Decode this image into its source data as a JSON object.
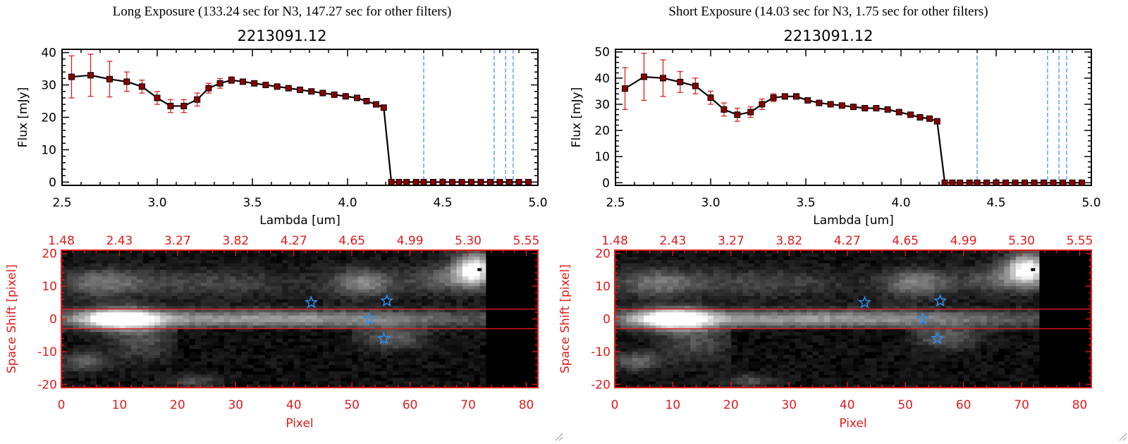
{
  "panels": [
    {
      "exposure_title": "Long Exposure (133.24 sec for N3, 147.27 sec for other filters)",
      "object_id": "2213091.12"
    },
    {
      "exposure_title": "Short Exposure (14.03 sec for N3, 1.75 sec for other filters)",
      "object_id": "2213091.12"
    }
  ],
  "colors": {
    "series": "#000000",
    "error_bars": "#e02020",
    "markers": "#8b0000",
    "filter_lines": "#3a8ee6",
    "image_axes": "#e01b1b",
    "stars": "#2f8ff0"
  },
  "chart_data": [
    {
      "type": "line",
      "title": "2213091.12",
      "xlabel": "Lambda [um]",
      "ylabel": "Flux [mJy]",
      "xlim": [
        2.5,
        5.0
      ],
      "ylim": [
        -1,
        41
      ],
      "xticks": [
        "2.5",
        "3.0",
        "3.5",
        "4.0",
        "4.5",
        "5.0"
      ],
      "yticks": [
        "0",
        "10",
        "20",
        "30",
        "40"
      ],
      "x": [
        2.55,
        2.65,
        2.75,
        2.84,
        2.92,
        3.0,
        3.07,
        3.14,
        3.21,
        3.27,
        3.33,
        3.39,
        3.45,
        3.51,
        3.57,
        3.63,
        3.69,
        3.75,
        3.81,
        3.87,
        3.93,
        3.99,
        4.05,
        4.1,
        4.15,
        4.19,
        4.23,
        4.27,
        4.31,
        4.36,
        4.4,
        4.45,
        4.5,
        4.55,
        4.6,
        4.65,
        4.7,
        4.75,
        4.8,
        4.85,
        4.9,
        4.95
      ],
      "y": [
        32.5,
        33.0,
        31.8,
        31.0,
        29.5,
        26.0,
        23.5,
        23.5,
        25.5,
        29.0,
        30.5,
        31.5,
        31.0,
        30.5,
        30.0,
        29.5,
        29.0,
        28.5,
        28.0,
        27.5,
        27.0,
        26.5,
        26.0,
        25.0,
        24.0,
        23.0,
        0,
        0,
        0,
        0,
        0,
        0,
        0,
        0,
        0,
        0,
        0,
        0,
        0,
        0,
        0,
        0
      ],
      "yerr": [
        6.5,
        6.5,
        5.5,
        3.0,
        2.0,
        2.0,
        2.0,
        2.0,
        2.0,
        1.5,
        1.5,
        1.0,
        0.5,
        0.5,
        0.5,
        0.5,
        0.5,
        0.5,
        0.5,
        0.5,
        0.5,
        0.5,
        0.5,
        0.5,
        0.5,
        0.5,
        0.3,
        0.3,
        0.3,
        0.3,
        0.3,
        0.3,
        0.3,
        0.3,
        0.3,
        0.3,
        0.3,
        0.3,
        0.3,
        0.3,
        0.3,
        0.3
      ],
      "filter_lines": [
        4.4,
        4.77,
        4.83,
        4.87
      ]
    },
    {
      "type": "line",
      "title": "2213091.12",
      "xlabel": "Lambda [um]",
      "ylabel": "Flux [mJy]",
      "xlim": [
        2.5,
        5.0
      ],
      "ylim": [
        -1,
        51
      ],
      "xticks": [
        "2.5",
        "3.0",
        "3.5",
        "4.0",
        "4.5",
        "5.0"
      ],
      "yticks": [
        "0",
        "10",
        "20",
        "30",
        "40",
        "50"
      ],
      "x": [
        2.55,
        2.65,
        2.75,
        2.84,
        2.92,
        3.0,
        3.07,
        3.14,
        3.21,
        3.27,
        3.33,
        3.39,
        3.45,
        3.51,
        3.57,
        3.63,
        3.69,
        3.75,
        3.81,
        3.87,
        3.93,
        3.99,
        4.05,
        4.1,
        4.15,
        4.19,
        4.23,
        4.27,
        4.31,
        4.36,
        4.4,
        4.45,
        4.5,
        4.55,
        4.6,
        4.65,
        4.7,
        4.75,
        4.8,
        4.85,
        4.9,
        4.95
      ],
      "y": [
        36.0,
        40.5,
        40.0,
        38.5,
        37.0,
        32.5,
        28.0,
        26.0,
        27.0,
        30.0,
        32.5,
        33.0,
        33.0,
        31.5,
        30.5,
        30.0,
        29.5,
        29.0,
        28.5,
        28.5,
        28.0,
        27.0,
        26.0,
        25.0,
        24.5,
        23.5,
        0,
        0,
        0,
        0,
        0,
        0,
        0,
        0,
        0,
        0,
        0,
        0,
        0,
        0,
        0,
        0
      ],
      "yerr": [
        8.0,
        9.0,
        7.0,
        4.0,
        3.0,
        2.5,
        2.5,
        2.5,
        2.0,
        2.0,
        1.5,
        1.0,
        0.5,
        0.5,
        0.5,
        0.5,
        0.5,
        0.5,
        0.5,
        0.5,
        0.5,
        0.5,
        0.5,
        0.5,
        0.5,
        0.5,
        0.3,
        0.3,
        0.3,
        0.3,
        0.3,
        0.3,
        0.3,
        0.3,
        0.3,
        0.3,
        0.3,
        0.3,
        0.3,
        0.3,
        0.3,
        0.3
      ],
      "filter_lines": [
        4.4,
        4.77,
        4.83,
        4.87
      ]
    },
    {
      "type": "heatmap",
      "xlabel": "Pixel",
      "ylabel": "Space Shift [pixel]",
      "xlim": [
        0,
        82
      ],
      "ylim": [
        -21,
        21
      ],
      "xticks": [
        "0",
        "10",
        "20",
        "30",
        "40",
        "50",
        "60",
        "70",
        "80"
      ],
      "yticks": [
        "-20",
        "-10",
        "0",
        "10",
        "20"
      ],
      "top_ticks": [
        "1.48",
        "2.43",
        "3.27",
        "3.82",
        "4.27",
        "4.65",
        "4.99",
        "5.30",
        "5.55"
      ],
      "aperture": [
        -3,
        3
      ],
      "stars": [
        [
          43,
          5
        ],
        [
          56,
          5.5
        ],
        [
          53,
          0
        ],
        [
          55.5,
          -6
        ]
      ]
    },
    {
      "type": "heatmap",
      "xlabel": "Pixel",
      "ylabel": "Space Shift [pixel]",
      "xlim": [
        0,
        82
      ],
      "ylim": [
        -21,
        21
      ],
      "xticks": [
        "0",
        "10",
        "20",
        "30",
        "40",
        "50",
        "60",
        "70",
        "80"
      ],
      "yticks": [
        "-20",
        "-10",
        "0",
        "10",
        "20"
      ],
      "top_ticks": [
        "1.48",
        "2.43",
        "3.27",
        "3.82",
        "4.27",
        "4.65",
        "4.99",
        "5.30",
        "5.55"
      ],
      "aperture": [
        -3,
        3
      ],
      "stars": [
        [
          43,
          5
        ],
        [
          56,
          5.5
        ],
        [
          53,
          0
        ],
        [
          55.5,
          -6
        ]
      ]
    }
  ]
}
